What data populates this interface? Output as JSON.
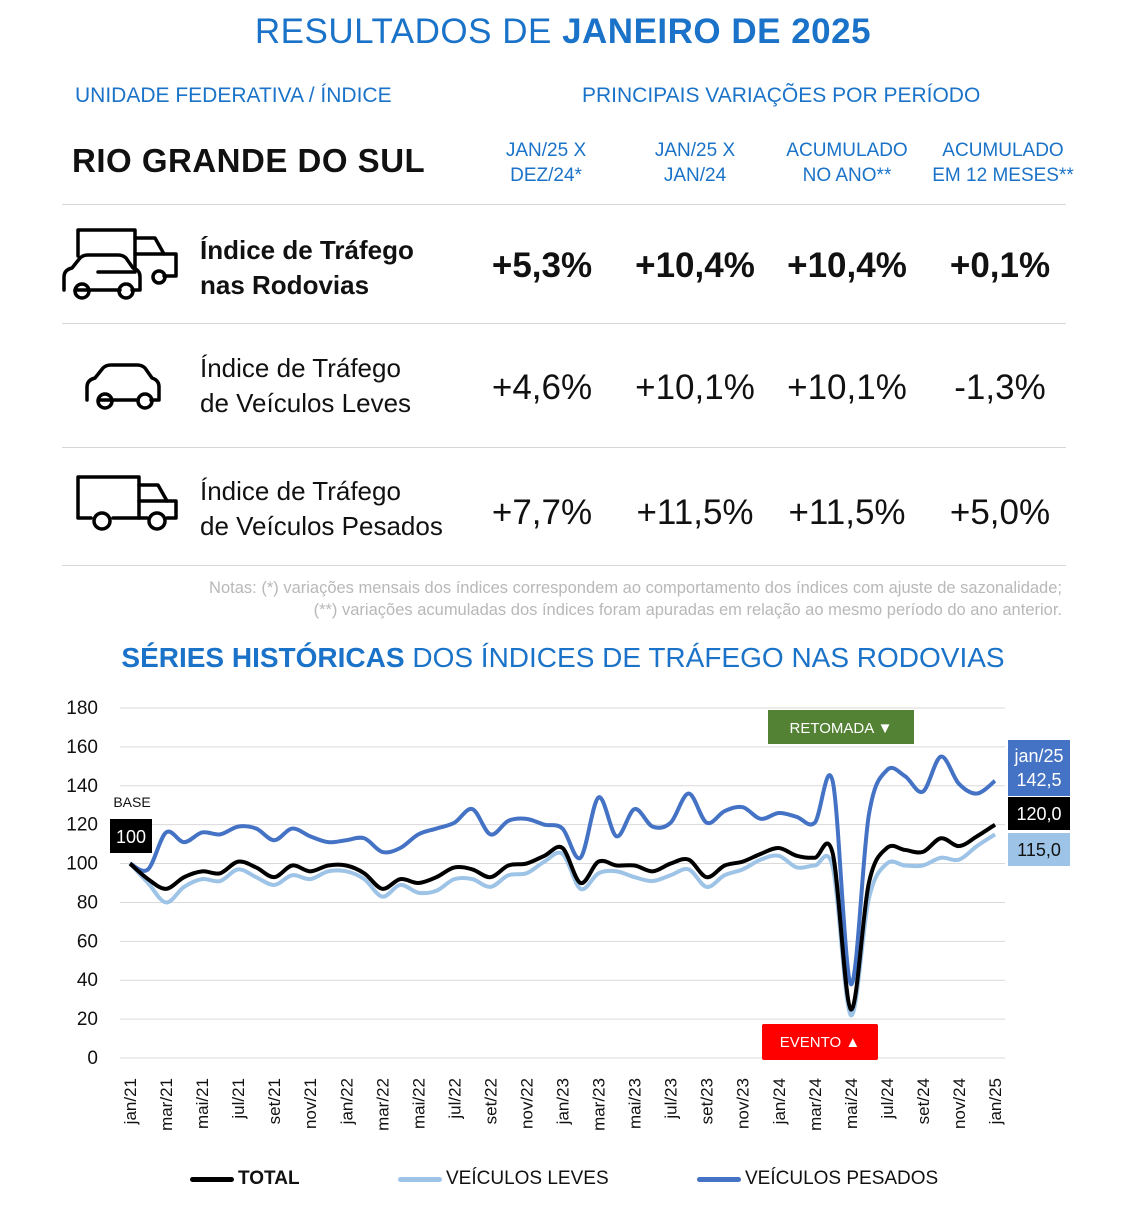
{
  "header": {
    "title_prefix": "RESULTADOS DE",
    "title_bold": "JANEIRO DE 2025",
    "left_heading": "UNIDADE FEDERATIVA / ÍNDICE",
    "right_heading": "PRINCIPAIS VARIAÇÕES POR PERÍODO",
    "state": "RIO GRANDE DO SUL"
  },
  "columns": [
    {
      "line1": "JAN/25 X",
      "line2": "DEZ/24*"
    },
    {
      "line1": "JAN/25 X",
      "line2": "JAN/24"
    },
    {
      "line1": "ACUMULADO",
      "line2": "NO ANO**"
    },
    {
      "line1": "ACUMULADO",
      "line2": "EM 12 MESES**"
    }
  ],
  "rows": [
    {
      "icon": "car-and-truck-icon",
      "line1": "Índice de Tráfego",
      "line2": "nas Rodovias",
      "values": [
        "+5,3%",
        "+10,4%",
        "+10,4%",
        "+0,1%"
      ]
    },
    {
      "icon": "car-icon",
      "line1": "Índice de Tráfego",
      "line2": "de Veículos Leves",
      "values": [
        "+4,6%",
        "+10,1%",
        "+10,1%",
        "-1,3%"
      ]
    },
    {
      "icon": "truck-icon",
      "line1": "Índice de Tráfego",
      "line2": "de Veículos Pesados",
      "values": [
        "+7,7%",
        "+11,5%",
        "+11,5%",
        "+5,0%"
      ]
    }
  ],
  "notes": {
    "line1": "Notas: (*) variações mensais dos índices correspondem ao comportamento dos índices com ajuste de sazonalidade;",
    "line2": "(**) variações acumuladas dos índices foram apuradas em relação ao mesmo período do ano anterior."
  },
  "series_section": {
    "title_bold": "SÉRIES HISTÓRICAS",
    "title_rest": "DOS ÍNDICES DE TRÁFEGO NAS RODOVIAS"
  },
  "colors": {
    "accent": "#1a73c8",
    "total": "#000000",
    "leves": "#9dc3e6",
    "pesados": "#4472c4",
    "retomada": "#548235",
    "evento": "#ff0000"
  },
  "chart_data": {
    "type": "line",
    "x": [
      "jan/21",
      "fev/21",
      "mar/21",
      "abr/21",
      "mai/21",
      "jun/21",
      "jul/21",
      "ago/21",
      "set/21",
      "out/21",
      "nov/21",
      "dez/21",
      "jan/22",
      "fev/22",
      "mar/22",
      "abr/22",
      "mai/22",
      "jun/22",
      "jul/22",
      "ago/22",
      "set/22",
      "out/22",
      "nov/22",
      "dez/22",
      "jan/23",
      "fev/23",
      "mar/23",
      "abr/23",
      "mai/23",
      "jun/23",
      "jul/23",
      "ago/23",
      "set/23",
      "out/23",
      "nov/23",
      "dez/23",
      "jan/24",
      "fev/24",
      "mar/24",
      "abr/24",
      "mai/24",
      "jun/24",
      "jul/24",
      "ago/24",
      "set/24",
      "out/24",
      "nov/24",
      "dez/24",
      "jan/25"
    ],
    "tick_labels": [
      "jan/21",
      "mar/21",
      "mai/21",
      "jul/21",
      "set/21",
      "nov/21",
      "jan/22",
      "mar/22",
      "mai/22",
      "jul/22",
      "set/22",
      "nov/22",
      "jan/23",
      "mar/23",
      "mai/23",
      "jul/23",
      "set/23",
      "nov/23",
      "jan/24",
      "mar/24",
      "mai/24",
      "jul/24",
      "set/24",
      "nov/24",
      "jan/25"
    ],
    "ylim": [
      0,
      180
    ],
    "yticks": [
      0,
      20,
      40,
      60,
      80,
      100,
      120,
      140,
      160,
      180
    ],
    "grid": true,
    "series": [
      {
        "name": "TOTAL",
        "key": "total",
        "values": [
          100,
          92,
          87,
          93,
          96,
          95,
          101,
          98,
          93,
          99,
          96,
          99,
          99,
          95,
          87,
          92,
          90,
          93,
          98,
          97,
          93,
          99,
          100,
          104,
          108,
          90,
          101,
          99,
          99,
          96,
          100,
          102,
          93,
          99,
          101,
          105,
          108,
          104,
          103,
          105,
          25,
          90,
          108,
          107,
          106,
          113,
          109,
          114,
          120
        ]
      },
      {
        "name": "VEÍCULOS LEVES",
        "key": "leves",
        "values": [
          100,
          90,
          80,
          88,
          92,
          91,
          97,
          93,
          89,
          94,
          92,
          96,
          96,
          92,
          83,
          89,
          85,
          86,
          92,
          92,
          88,
          94,
          95,
          101,
          105,
          87,
          95,
          96,
          93,
          91,
          94,
          97,
          88,
          94,
          97,
          102,
          104,
          98,
          99,
          98,
          22,
          82,
          100,
          99,
          99,
          103,
          102,
          109,
          115
        ]
      },
      {
        "name": "VEÍCULOS PESADOS",
        "key": "pesados",
        "values": [
          100,
          97,
          116,
          111,
          116,
          115,
          119,
          118,
          112,
          118,
          114,
          111,
          112,
          113,
          106,
          108,
          115,
          118,
          121,
          128,
          115,
          122,
          123,
          120,
          118,
          103,
          134,
          114,
          128,
          119,
          121,
          136,
          121,
          127,
          129,
          123,
          126,
          124,
          121,
          142,
          38,
          125,
          148,
          145,
          137,
          155,
          141,
          136,
          142.5
        ]
      }
    ],
    "annotations": {
      "base_label": "BASE",
      "base_value": "100",
      "retomada": "RETOMADA ▼",
      "evento": "EVENTO ▲",
      "last_period": "jan/25",
      "last_pesados": "142,5",
      "last_total": "120,0",
      "last_leves": "115,0"
    }
  },
  "legend": {
    "total": "TOTAL",
    "leves": "VEÍCULOS LEVES",
    "pesados": "VEÍCULOS PESADOS"
  }
}
